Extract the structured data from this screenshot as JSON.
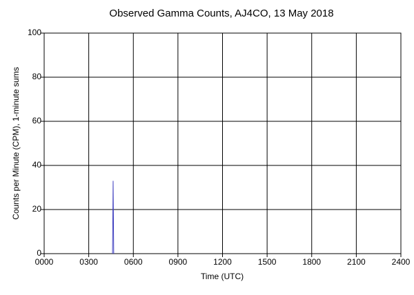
{
  "chart_data": {
    "type": "line",
    "title": "Observed Gamma Counts, AJ4CO, 13 May 2018",
    "x_label": "Time (UTC)",
    "y_label": "Counts per Minute (CPM), 1-minute sums",
    "x": [
      4.6,
      4.64,
      4.68
    ],
    "series": [
      {
        "name": "CPM",
        "color": "#4040c0",
        "values": [
          0,
          33,
          0
        ]
      }
    ],
    "xlim": [
      0,
      24
    ],
    "xticks": [
      {
        "value": 0,
        "label": "0000"
      },
      {
        "value": 3,
        "label": "0300"
      },
      {
        "value": 6,
        "label": "0600"
      },
      {
        "value": 9,
        "label": "0900"
      },
      {
        "value": 12,
        "label": "1200"
      },
      {
        "value": 15,
        "label": "1500"
      },
      {
        "value": 18,
        "label": "1800"
      },
      {
        "value": 21,
        "label": "2100"
      },
      {
        "value": 24,
        "label": "2400"
      }
    ],
    "ylim": [
      0,
      100
    ],
    "yticks": [
      0,
      20,
      40,
      60,
      80,
      100
    ],
    "grid": true
  }
}
